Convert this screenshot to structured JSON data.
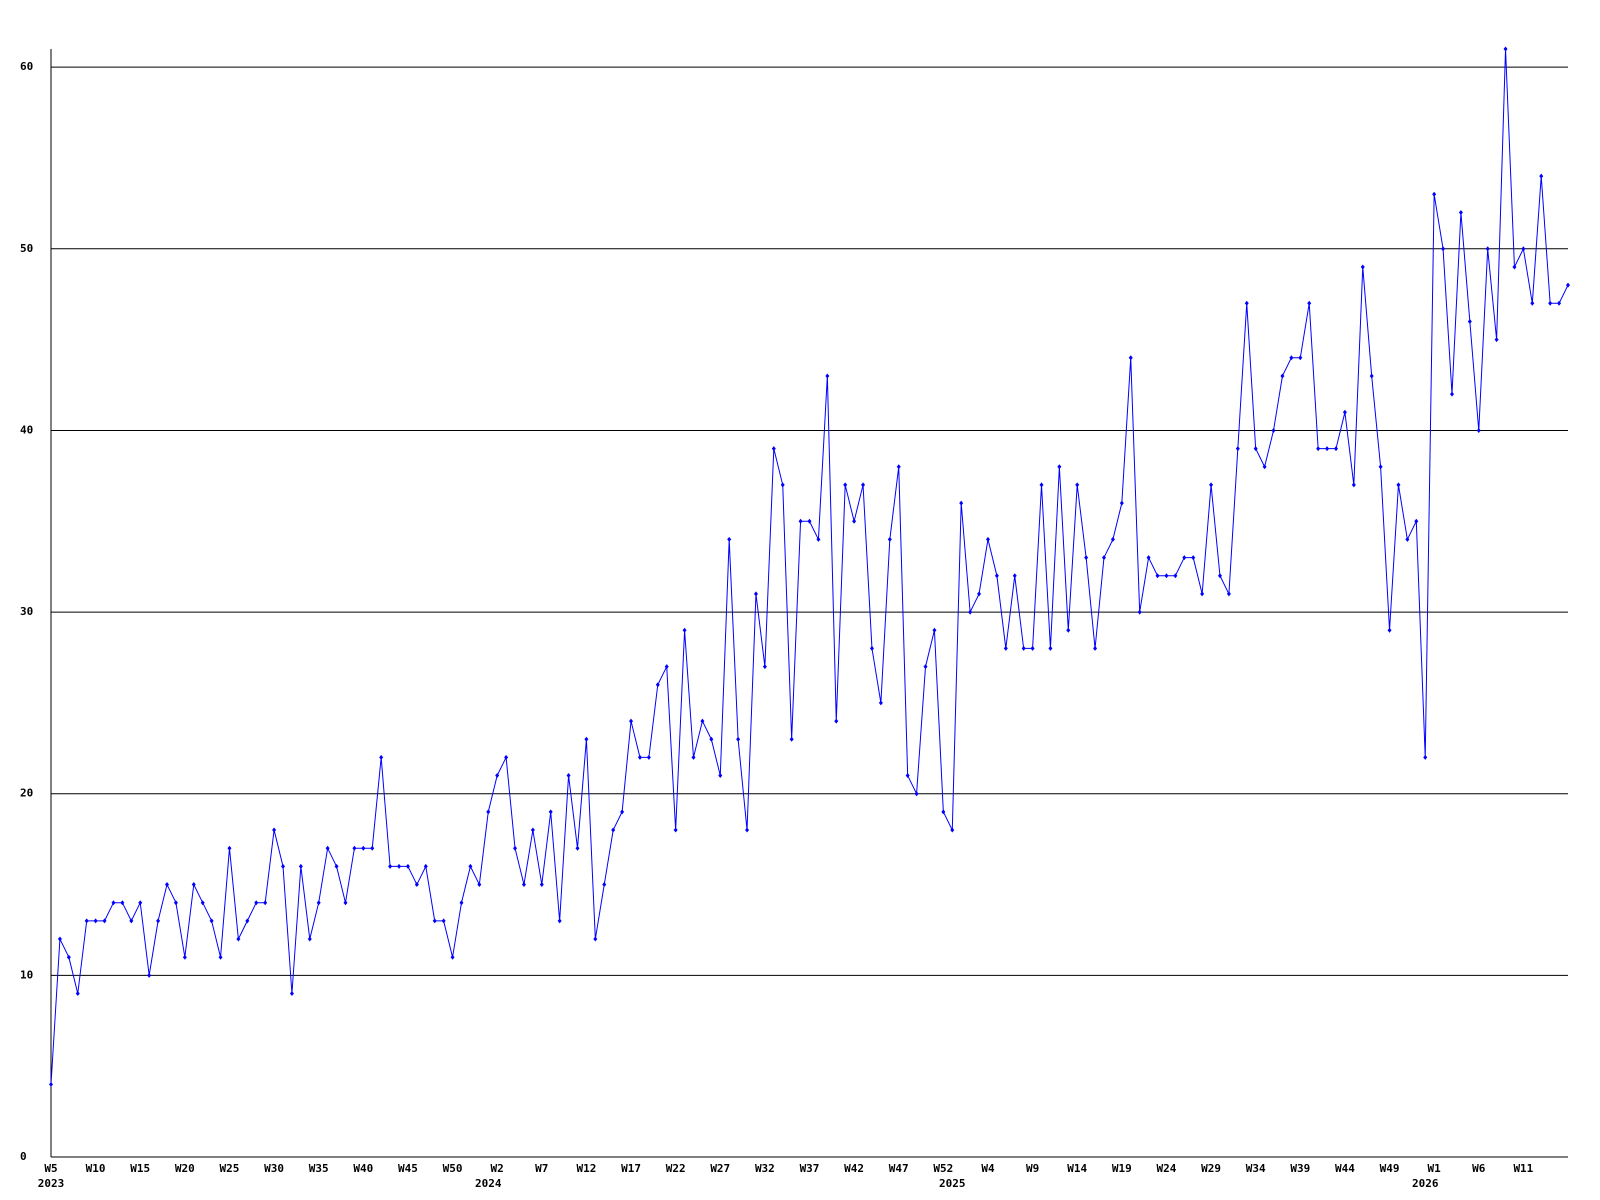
{
  "chart_data": {
    "type": "line",
    "categories": [
      "W5",
      null,
      null,
      null,
      null,
      "W10",
      null,
      null,
      null,
      null,
      "W15",
      null,
      null,
      null,
      null,
      "W20",
      null,
      null,
      null,
      null,
      "W25",
      null,
      null,
      null,
      null,
      "W30",
      null,
      null,
      null,
      null,
      "W35",
      null,
      null,
      null,
      null,
      "W40",
      null,
      null,
      null,
      null,
      "W45",
      null,
      null,
      null,
      null,
      "W50",
      null,
      null,
      null,
      null,
      "W2",
      null,
      null,
      null,
      null,
      "W7",
      null,
      null,
      null,
      null,
      "W12",
      null,
      null,
      null,
      null,
      "W17",
      null,
      null,
      null,
      null,
      "W22",
      null,
      null,
      null,
      null,
      "W27",
      null,
      null,
      null,
      null,
      "W32",
      null,
      null,
      null,
      null,
      "W37",
      null,
      null,
      null,
      null,
      "W42",
      null,
      null,
      null,
      null,
      "W47",
      null,
      null,
      null,
      null,
      "W52",
      null,
      null,
      null,
      null,
      "W4",
      null,
      null,
      null,
      null,
      "W9",
      null,
      null,
      null,
      null,
      "W14",
      null,
      null,
      null,
      null,
      "W19",
      null,
      null,
      null,
      null,
      "W24",
      null,
      null,
      null,
      null,
      "W29",
      null,
      null,
      null,
      null,
      "W34",
      null,
      null,
      null,
      null,
      "W39",
      null,
      null,
      null,
      null,
      "W44",
      null,
      null,
      null,
      null,
      "W49",
      null,
      null,
      null,
      null,
      "W1",
      null,
      null,
      null,
      null,
      "W6",
      null,
      null,
      null,
      null,
      "W11",
      null,
      null,
      null,
      null,
      null
    ],
    "years": [
      "2023",
      null,
      null,
      null,
      null,
      null,
      null,
      null,
      null,
      null,
      null,
      null,
      null,
      null,
      null,
      null,
      null,
      null,
      null,
      null,
      null,
      null,
      null,
      null,
      null,
      null,
      null,
      null,
      null,
      null,
      null,
      null,
      null,
      null,
      null,
      null,
      null,
      null,
      null,
      null,
      null,
      null,
      null,
      null,
      null,
      null,
      null,
      null,
      null,
      "2024",
      null,
      null,
      null,
      null,
      null,
      null,
      null,
      null,
      null,
      null,
      null,
      null,
      null,
      null,
      null,
      null,
      null,
      null,
      null,
      null,
      null,
      null,
      null,
      null,
      null,
      null,
      null,
      null,
      null,
      null,
      null,
      null,
      null,
      null,
      null,
      null,
      null,
      null,
      null,
      null,
      null,
      null,
      null,
      null,
      null,
      null,
      null,
      null,
      null,
      null,
      null,
      "2025",
      null,
      null,
      null,
      null,
      null,
      null,
      null,
      null,
      null,
      null,
      null,
      null,
      null,
      null,
      null,
      null,
      null,
      null,
      null,
      null,
      null,
      null,
      null,
      null,
      null,
      null,
      null,
      null,
      null,
      null,
      null,
      null,
      null,
      null,
      null,
      null,
      null,
      null,
      null,
      null,
      null,
      null,
      null,
      null,
      null,
      null,
      null,
      null,
      null,
      null,
      null,
      null,
      "2026",
      null,
      null,
      null,
      null,
      null,
      null,
      null,
      null,
      null,
      null,
      null,
      null,
      null,
      null,
      null
    ],
    "series": [
      {
        "color": "#0000ff",
        "values": [
          4,
          12,
          11,
          9,
          13,
          13,
          13,
          14,
          14,
          13,
          14,
          10,
          13,
          15,
          14,
          11,
          15,
          14,
          13,
          11,
          17,
          12,
          13,
          14,
          14,
          18,
          16,
          9,
          16,
          12,
          14,
          17,
          16,
          14,
          17,
          17,
          17,
          22,
          16,
          16,
          16,
          15,
          16,
          13,
          13,
          11,
          14,
          16,
          15,
          19,
          21,
          22,
          17,
          15,
          18,
          15,
          19,
          13,
          21,
          17,
          23,
          12,
          15,
          18,
          19,
          24,
          22,
          22,
          26,
          27,
          18,
          29,
          22,
          24,
          23,
          21,
          34,
          23,
          18,
          31,
          27,
          39,
          37,
          23,
          35,
          35,
          34,
          43,
          24,
          37,
          35,
          37,
          28,
          25,
          34,
          38,
          21,
          20,
          27,
          29,
          19,
          18,
          36,
          30,
          31,
          34,
          32,
          28,
          32,
          28,
          28,
          37,
          28,
          38,
          29,
          37,
          33,
          28,
          33,
          34,
          36,
          44,
          30,
          33,
          32,
          32,
          32,
          33,
          33,
          31,
          37,
          32,
          31,
          39,
          47,
          39,
          38,
          40,
          43,
          44,
          44,
          47,
          39,
          39,
          39,
          41,
          37,
          49,
          43,
          38,
          29,
          37,
          34,
          35,
          22,
          53,
          50,
          42,
          52,
          46,
          40,
          50,
          45,
          61,
          49,
          50,
          47,
          54,
          47,
          47,
          48
        ]
      }
    ],
    "ylim": [
      0,
      61
    ],
    "yticks": [
      0,
      10,
      20,
      30,
      40,
      50,
      60
    ],
    "grid": true
  }
}
